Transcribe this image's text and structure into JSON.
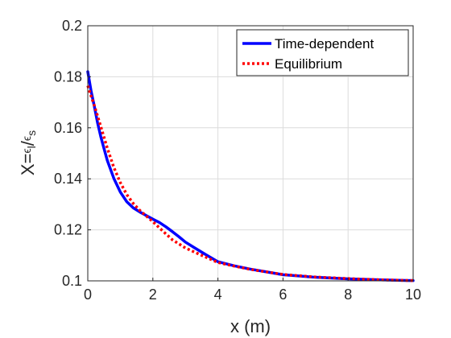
{
  "chart_data": {
    "type": "line",
    "xlabel": "x (m)",
    "ylabel": {
      "prefix": "X=",
      "numerator_symbol": "ϵ",
      "numerator_sub": "l",
      "slash": "/",
      "denominator_symbol": "ϵ",
      "denominator_sub": "s"
    },
    "xlim": [
      0,
      10
    ],
    "ylim": [
      0.1,
      0.2
    ],
    "xticks": [
      0,
      2,
      4,
      6,
      8,
      10
    ],
    "xtick_labels": [
      "0",
      "2",
      "4",
      "6",
      "8",
      "10"
    ],
    "yticks": [
      0.1,
      0.12,
      0.14,
      0.16,
      0.18,
      0.2
    ],
    "ytick_labels": [
      "0.1",
      "0.12",
      "0.14",
      "0.16",
      "0.18",
      "0.2"
    ],
    "grid": true,
    "legend_position": "top-right",
    "series": [
      {
        "name": "Time-dependent",
        "color": "#0000ff",
        "style": "solid",
        "x": [
          0,
          0.1,
          0.2,
          0.3,
          0.4,
          0.5,
          0.6,
          0.8,
          1.0,
          1.2,
          1.4,
          1.6,
          1.8,
          2.0,
          2.2,
          2.4,
          2.6,
          2.8,
          3.0,
          3.3,
          3.6,
          4.0,
          4.5,
          5.0,
          5.5,
          6.0,
          7.0,
          8.0,
          9.0,
          10.0
        ],
        "y": [
          0.182,
          0.1745,
          0.1685,
          0.162,
          0.1565,
          0.1518,
          0.1472,
          0.1402,
          0.1348,
          0.131,
          0.1286,
          0.127,
          0.1256,
          0.1242,
          0.1229,
          0.1212,
          0.1193,
          0.1173,
          0.1152,
          0.1128,
          0.1105,
          0.1075,
          0.1059,
          0.1046,
          0.1035,
          0.1024,
          0.1014,
          0.1008,
          0.1004,
          0.1001
        ]
      },
      {
        "name": "Equilibrium",
        "color": "#ff0000",
        "style": "dotted",
        "x": [
          0,
          0.1,
          0.2,
          0.4,
          0.6,
          0.8,
          1.0,
          1.2,
          1.4,
          1.6,
          1.8,
          2.0,
          2.3,
          2.6,
          3.0,
          3.5,
          4.0,
          4.5,
          5.0,
          5.5,
          6.0,
          7.0,
          8.0,
          9.0,
          10.0
        ],
        "y": [
          0.1765,
          0.1725,
          0.1688,
          0.1605,
          0.152,
          0.1445,
          0.1385,
          0.1338,
          0.1303,
          0.1276,
          0.1254,
          0.1232,
          0.1196,
          0.1161,
          0.1129,
          0.11,
          0.1072,
          0.1058,
          0.1045,
          0.1035,
          0.1025,
          0.1015,
          0.1009,
          0.1004,
          0.1001
        ]
      }
    ]
  }
}
